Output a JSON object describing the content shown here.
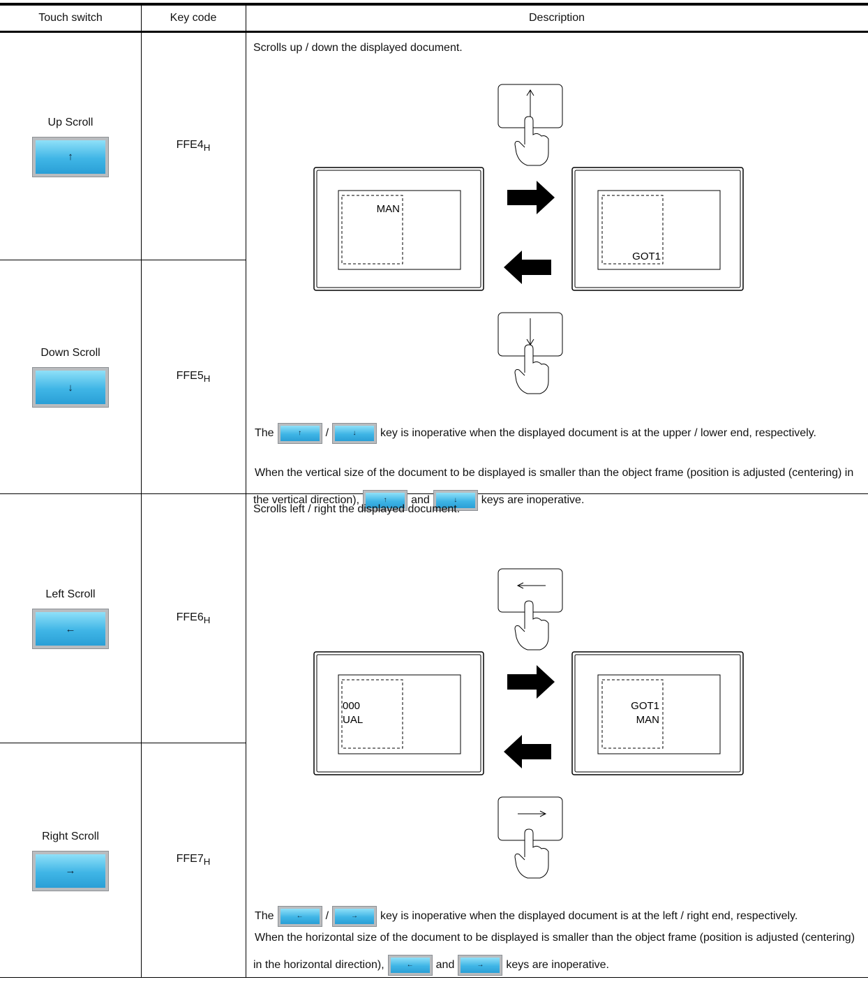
{
  "table": {
    "headers": [
      "Touch switch",
      "Key code",
      "Description"
    ],
    "rows": [
      {
        "touch_switch": "Up Scroll",
        "icon": "↑",
        "key_code": "FFE4",
        "key_code_subscript": "H"
      },
      {
        "touch_switch": "Down Scroll",
        "icon": "↓",
        "key_code": "FFE5",
        "key_code_subscript": "H"
      },
      {
        "touch_switch": "Left Scroll",
        "icon": "←",
        "key_code": "FFE6",
        "key_code_subscript": "H"
      },
      {
        "touch_switch": "Right Scroll",
        "icon": "→",
        "key_code": "FFE7",
        "key_code_subscript": "H"
      }
    ],
    "descriptions": [
      {
        "summary": "Scrolls up / down the displayed document.",
        "screen_before": [
          "MAN"
        ],
        "screen_after": [
          "GOT1"
        ],
        "note_1": {
          "start": "The",
          "separator": "/",
          "end": "key is inoperative when the displayed document is at the upper / lower end, respectively."
        },
        "note_2": {
          "start": "When the vertical size of the document to be displayed is smaller than the object frame (position is adjusted (centering) in the vertical direction),",
          "conjunction": "and",
          "end": "keys are inoperative."
        }
      },
      {
        "summary": "Scrolls left / right the displayed document.",
        "screen_before": [
          "000",
          "UAL"
        ],
        "screen_after": [
          "GOT1",
          "MAN"
        ],
        "note_1": {
          "start": "The",
          "separator": "/",
          "end": "key is inoperative when the displayed document is at the left / right end, respectively."
        },
        "note_2": {
          "start": "When the horizontal size of the document to be displayed is smaller than the object frame (position is adjusted (centering) in the horizontal direction),",
          "conjunction": "and",
          "end": "keys are inoperative."
        }
      }
    ]
  }
}
